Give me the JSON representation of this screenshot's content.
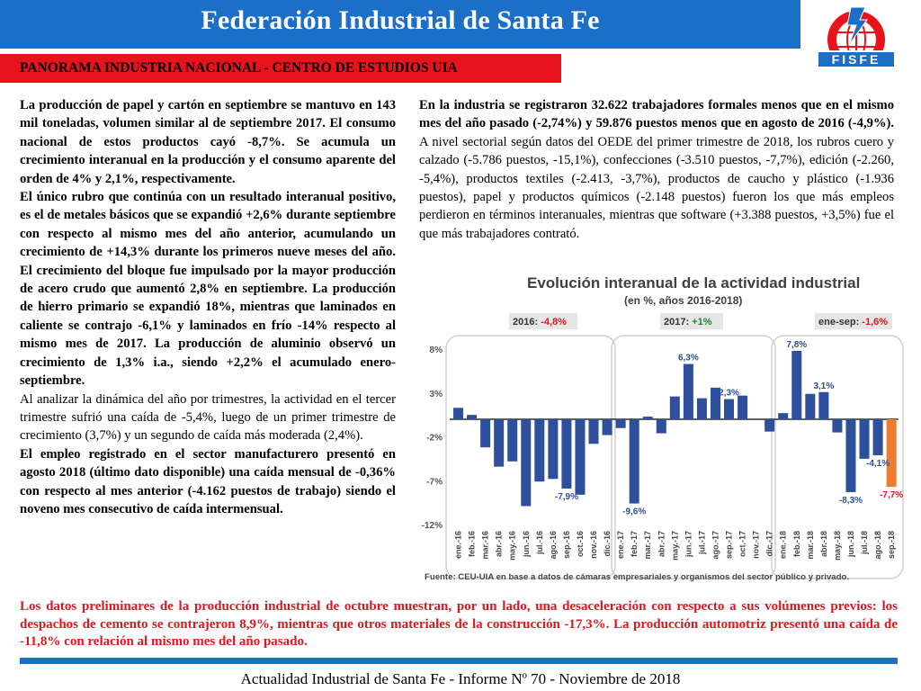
{
  "header": {
    "title": "Federación Industrial de Santa Fe",
    "logo_text": "FISFE"
  },
  "subheader": {
    "title": "PANORAMA INDUSTRIA NACIONAL - CENTRO DE ESTUDIOS UIA"
  },
  "left_column": {
    "p1": "La producción de papel y cartón en septiembre se mantuvo en 143 mil toneladas, volumen similar al de septiembre 2017. El consumo nacional de estos productos cayó -8,7%. Se acumula un crecimiento interanual en la producción y el consumo aparente del orden de 4% y 2,1%, respectivamente.",
    "p2": "El único rubro que continúa con un resultado interanual positivo, es el de metales básicos que se expandió +2,6% durante septiembre con respecto al mismo mes del año anterior, acumulando un crecimiento de +14,3% durante los primeros nueve meses del año. El crecimiento del bloque fue impulsado por la mayor producción de acero crudo que aumentó 2,8% en septiembre. La producción de hierro primario se expandió 18%, mientras que laminados en caliente se contrajo -6,1% y laminados en frío -14% respecto al mismo mes de 2017. La producción de aluminio observó un crecimiento  de 1,3% i.a., siendo +2,2% el acumulado enero-septiembre.",
    "p3": "Al analizar la dinámica del año por trimestres, la actividad en el tercer trimestre sufrió una caída de -5,4%, luego de un primer trimestre de crecimiento (3,7%) y un segundo de caída más moderada (2,4%).",
    "p4": "El empleo registrado en el sector manufacturero presentó en agosto 2018 (último dato disponible) una caída mensual de -0,36% con respecto al mes anterior (-4.162 puestos de trabajo) siendo el noveno mes consecutivo de caída intermensual."
  },
  "right_column": {
    "bold_part": "En la industria se registraron 32.622 trabajadores formales menos que en el mismo mes del año pasado (-2,74%) y 59.876 puestos menos que en agosto de 2016 (-4,9%).",
    "normal_part": " A nivel sectorial según datos del OEDE del primer trimestre de 2018, los rubros cuero y calzado (-5.786 puestos, -15,1%), confecciones (-3.510 puestos, -7,7%), edición (-2.260, -5,4%), productos textiles (-2.413, -3,7%), productos de caucho y plástico (-1.936 puestos), papel y productos químicos (-2.148 puestos) fueron los que más empleos perdieron en términos interanuales, mientras que software (+3.388 puestos, +3,5%) fue el que más trabajadores contrató."
  },
  "chart_data": {
    "type": "bar",
    "title": "Evolución interanual de la actividad industrial",
    "subtitle": "(en %, años 2016-2018)",
    "source": "Fuente: CEU-UIA en base a datos de cámaras empresariales y organismos del sector público y privado.",
    "ylim": [
      -12,
      8
    ],
    "yticks": [
      8,
      3,
      -2,
      -7,
      -12
    ],
    "ytick_labels": [
      "8%",
      "3%",
      "-2%",
      "-7%",
      "-12%"
    ],
    "categories": [
      "ene.-16",
      "feb.-16",
      "mar.-16",
      "abr.-16",
      "may.-16",
      "jun.-16",
      "jul.-16",
      "ago.-16",
      "sep.-16",
      "oct.-16",
      "nov.-16",
      "dic.-16",
      "ene.-17",
      "feb.-17",
      "mar.-17",
      "abr.-17",
      "may.-17",
      "jun.-17",
      "jul.-17",
      "ago.-17",
      "sep.-17",
      "oct.-17",
      "nov.-17",
      "dic.-17",
      "ene.-18",
      "feb.-18",
      "mar.-18",
      "abr.-18",
      "may.-18",
      "jun.-18",
      "jul.-18",
      "ago.-18",
      "sep.-18"
    ],
    "values": [
      1.3,
      0.5,
      -3.2,
      -5.4,
      -4.8,
      -9.9,
      -7.1,
      -6.8,
      -7.9,
      -8.6,
      -2.8,
      -1.8,
      -1.0,
      -9.6,
      0.3,
      -1.6,
      2.6,
      6.3,
      2.4,
      3.6,
      2.3,
      2.7,
      0.0,
      -1.4,
      0.7,
      7.8,
      2.9,
      3.1,
      -1.5,
      -8.3,
      -4.5,
      -4.1,
      -7.7
    ],
    "bar_color": "#2e4f9c",
    "highlight_color": "#ed7d31",
    "highlight_index": 32,
    "value_labels": [
      {
        "index": 8,
        "text": "-7,9%"
      },
      {
        "index": 13,
        "text": "-9,6%"
      },
      {
        "index": 17,
        "text": "6,3%"
      },
      {
        "index": 20,
        "text": "2,3%"
      },
      {
        "index": 25,
        "text": "7,8%"
      },
      {
        "index": 27,
        "text": "3,1%"
      },
      {
        "index": 29,
        "text": "-8,3%"
      },
      {
        "index": 31,
        "text": "-4,1%"
      },
      {
        "index": 32,
        "text": "-7,7%"
      }
    ],
    "groups": [
      {
        "label_name": "2016: ",
        "label_value": "-4,8%",
        "value_color": "#e8131c"
      },
      {
        "label_name": "2017: ",
        "label_value": "+1%",
        "value_color": "#2e7d32"
      },
      {
        "label_name": "ene-sep: ",
        "label_value": "-1,6%",
        "value_color": "#e8131c"
      }
    ]
  },
  "bottom_text": "Los datos preliminares de la producción industrial de octubre muestran, por un lado, una desaceleración con respecto a sus volúmenes previos: los despachos de cemento se contrajeron 8,9%, mientras que otros materiales de la construcción -17,3%. La producción automotriz presentó una caída de -11,8% con relación al mismo mes del año pasado.",
  "footer": {
    "text": "Actualidad Industrial de Santa Fe - Informe Nº 70 - Noviembre de 2018"
  }
}
